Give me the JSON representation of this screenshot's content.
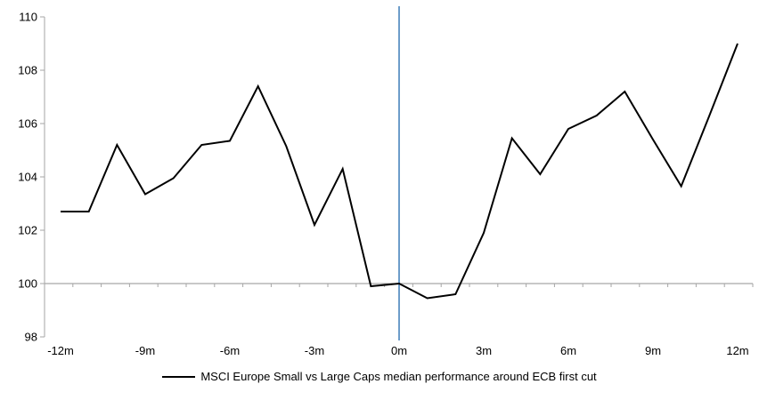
{
  "chart_data": {
    "type": "line",
    "x_months": [
      -12,
      -11,
      -10,
      -9,
      -8,
      -7,
      -6,
      -5,
      -4,
      -3,
      -2,
      -1,
      0,
      1,
      2,
      3,
      4,
      5,
      6,
      7,
      8,
      9,
      10,
      11,
      12
    ],
    "x_axis_tick_labels": [
      "-12m",
      "-9m",
      "-6m",
      "-3m",
      "0m",
      "3m",
      "6m",
      "9m",
      "12m"
    ],
    "x_label_every_n_months": 3,
    "y_axis_tick_labels": [
      "110",
      "108",
      "106",
      "104",
      "102",
      "100",
      "98"
    ],
    "ylim": [
      98,
      110
    ],
    "y_tick_step": 2,
    "baseline_value": 100,
    "grid": false,
    "legend_position": "bottom-center",
    "axis_color": "#a6a6a6",
    "series": [
      {
        "name": "MSCI Europe Small vs Large Caps median performance around ECB first cut",
        "color": "#000000",
        "values": [
          102.7,
          102.7,
          105.2,
          103.35,
          103.95,
          105.2,
          105.35,
          107.4,
          105.15,
          102.2,
          104.3,
          99.9,
          100.0,
          99.45,
          99.6,
          101.9,
          105.45,
          104.1,
          105.8,
          106.3,
          107.2,
          105.4,
          103.65,
          106.3,
          109.0
        ]
      }
    ],
    "event_line": {
      "x_month": 0,
      "color": "#6d9dca"
    }
  }
}
